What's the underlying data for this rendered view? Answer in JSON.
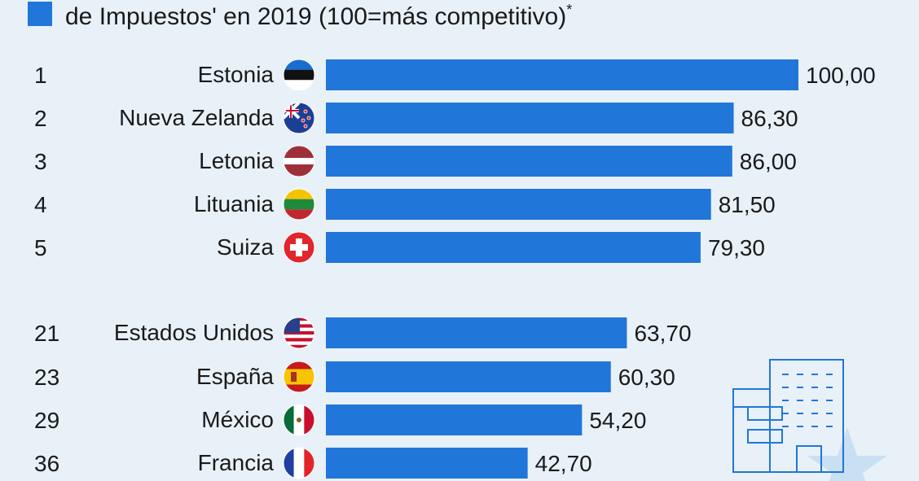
{
  "header": {
    "subtitle": "de Impuestos' en 2019 (100=más competitivo)",
    "footnote_mark": "*",
    "accent": "#2176d9"
  },
  "chart_data": {
    "type": "bar",
    "orientation": "horizontal",
    "bar_color": "#2176d9",
    "xlim": [
      0,
      100
    ],
    "rows": [
      {
        "rank": "1",
        "country": "Estonia",
        "value": 100.0,
        "label": "100,00",
        "flag": "estonia-flag-icon"
      },
      {
        "rank": "2",
        "country": "Nueva Zelanda",
        "value": 86.3,
        "label": "86,30",
        "flag": "new-zealand-flag-icon"
      },
      {
        "rank": "3",
        "country": "Letonia",
        "value": 86.0,
        "label": "86,00",
        "flag": "latvia-flag-icon"
      },
      {
        "rank": "4",
        "country": "Lituania",
        "value": 81.5,
        "label": "81,50",
        "flag": "lithuania-flag-icon"
      },
      {
        "rank": "5",
        "country": "Suiza",
        "value": 79.3,
        "label": "79,30",
        "flag": "switzerland-flag-icon"
      },
      {
        "rank": "21",
        "country": "Estados Unidos",
        "value": 63.7,
        "label": "63,70",
        "flag": "usa-flag-icon"
      },
      {
        "rank": "23",
        "country": "España",
        "value": 60.3,
        "label": "60,30",
        "flag": "spain-flag-icon"
      },
      {
        "rank": "29",
        "country": "México",
        "value": 54.2,
        "label": "54,20",
        "flag": "mexico-flag-icon"
      },
      {
        "rank": "36",
        "country": "Francia",
        "value": 42.7,
        "label": "42,70",
        "flag": "france-flag-icon"
      }
    ]
  },
  "decoration": {
    "icon": "office-building-icon"
  }
}
